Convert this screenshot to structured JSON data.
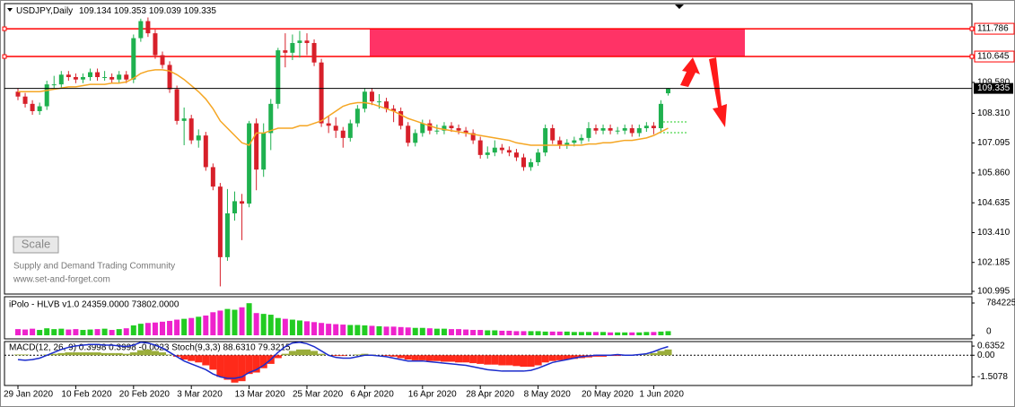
{
  "chart_data": {
    "type": "candlestick",
    "title": "USDJPY,Daily",
    "categories": [
      "29 Jan 2020",
      null,
      null,
      null,
      null,
      null,
      null,
      null,
      "10 Feb 2020",
      null,
      null,
      null,
      null,
      null,
      null,
      null,
      "20 Feb 2020",
      null,
      null,
      null,
      null,
      null,
      null,
      null,
      "3 Mar 2020",
      null,
      null,
      null,
      null,
      null,
      null,
      null,
      "13 Mar 2020",
      null,
      null,
      null,
      null,
      null,
      null,
      null,
      "25 Mar 2020",
      null,
      null,
      null,
      null,
      null,
      null,
      null,
      "6 Apr 2020",
      null,
      null,
      null,
      null,
      null,
      null,
      null,
      "16 Apr 2020",
      null,
      null,
      null,
      null,
      null,
      null,
      null,
      "28 Apr 2020",
      null,
      null,
      null,
      null,
      null,
      null,
      null,
      "8 May 2020",
      null,
      null,
      null,
      null,
      null,
      null,
      null,
      "20 May 2020",
      null,
      null,
      null,
      null,
      null,
      null,
      null,
      "1 Jun 2020",
      null,
      null
    ],
    "candles": [
      [
        109.2,
        109.35,
        108.85,
        109.0
      ],
      [
        109.0,
        109.15,
        108.55,
        108.7
      ],
      [
        108.7,
        108.85,
        108.25,
        108.4
      ],
      [
        108.4,
        108.75,
        108.25,
        108.6
      ],
      [
        108.6,
        109.65,
        108.45,
        109.5
      ],
      [
        109.5,
        109.85,
        109.35,
        109.5
      ],
      [
        109.5,
        110.05,
        109.35,
        109.9
      ],
      [
        109.9,
        110.05,
        109.65,
        109.8
      ],
      [
        109.8,
        109.95,
        109.55,
        109.7
      ],
      [
        109.7,
        109.95,
        109.55,
        109.8
      ],
      [
        109.8,
        110.15,
        109.65,
        110.0
      ],
      [
        110.0,
        110.15,
        109.65,
        109.8
      ],
      [
        109.8,
        110.05,
        109.65,
        109.8
      ],
      [
        109.8,
        109.95,
        109.55,
        109.7
      ],
      [
        109.7,
        110.05,
        109.55,
        109.9
      ],
      [
        109.9,
        110.05,
        109.55,
        109.7
      ],
      [
        109.7,
        111.55,
        109.55,
        111.4
      ],
      [
        111.4,
        112.2,
        111.25,
        112.1
      ],
      [
        112.1,
        112.25,
        111.45,
        111.6
      ],
      [
        111.6,
        111.75,
        110.55,
        110.7
      ],
      [
        110.7,
        110.85,
        110.15,
        110.3
      ],
      [
        110.3,
        110.45,
        109.15,
        109.3
      ],
      [
        109.3,
        109.45,
        107.85,
        108.0
      ],
      [
        108.0,
        108.55,
        107.0,
        108.1
      ],
      [
        108.1,
        108.25,
        107.05,
        107.2
      ],
      [
        107.2,
        107.65,
        106.9,
        107.4
      ],
      [
        107.4,
        107.55,
        105.95,
        106.1
      ],
      [
        106.1,
        106.25,
        105.15,
        105.3
      ],
      [
        105.3,
        105.45,
        101.2,
        102.4
      ],
      [
        102.4,
        105.2,
        102.25,
        104.2
      ],
      [
        104.2,
        105.1,
        103.9,
        104.7
      ],
      [
        104.7,
        105.0,
        103.1,
        104.6
      ],
      [
        104.6,
        108.0,
        104.45,
        107.9
      ],
      [
        107.9,
        108.1,
        105.15,
        106.0
      ],
      [
        106.0,
        107.9,
        105.7,
        107.5
      ],
      [
        107.5,
        108.9,
        106.8,
        108.7
      ],
      [
        108.7,
        111.0,
        108.5,
        110.9
      ],
      [
        110.9,
        111.6,
        110.2,
        110.8
      ],
      [
        110.8,
        111.55,
        110.5,
        111.2
      ],
      [
        111.2,
        111.7,
        110.6,
        111.3
      ],
      [
        111.3,
        111.6,
        110.7,
        111.2
      ],
      [
        111.2,
        111.35,
        110.25,
        110.4
      ],
      [
        110.4,
        110.55,
        107.75,
        107.9
      ],
      [
        107.9,
        108.2,
        107.5,
        107.8
      ],
      [
        107.8,
        108.15,
        107.3,
        107.6
      ],
      [
        107.6,
        107.75,
        106.9,
        107.3
      ],
      [
        107.3,
        108.05,
        107.15,
        107.9
      ],
      [
        107.9,
        108.65,
        107.75,
        108.5
      ],
      [
        108.5,
        109.35,
        108.35,
        109.2
      ],
      [
        109.2,
        109.35,
        108.65,
        108.8
      ],
      [
        108.8,
        109.1,
        108.5,
        108.8
      ],
      [
        108.8,
        108.95,
        108.35,
        108.5
      ],
      [
        108.5,
        108.65,
        107.95,
        108.4
      ],
      [
        108.4,
        108.55,
        107.65,
        107.8
      ],
      [
        107.8,
        107.95,
        106.95,
        107.1
      ],
      [
        107.1,
        107.65,
        106.95,
        107.5
      ],
      [
        107.5,
        108.05,
        107.35,
        107.9
      ],
      [
        107.9,
        108.05,
        107.45,
        107.6
      ],
      [
        107.6,
        107.85,
        107.45,
        107.6
      ],
      [
        107.6,
        107.95,
        107.45,
        107.8
      ],
      [
        107.8,
        107.95,
        107.55,
        107.7
      ],
      [
        107.7,
        107.85,
        107.45,
        107.6
      ],
      [
        107.6,
        107.75,
        107.35,
        107.5
      ],
      [
        107.5,
        107.65,
        107.05,
        107.2
      ],
      [
        107.2,
        107.35,
        106.45,
        106.6
      ],
      [
        106.6,
        106.95,
        106.45,
        106.7
      ],
      [
        106.7,
        107.2,
        106.55,
        106.9
      ],
      [
        106.9,
        107.05,
        106.65,
        106.8
      ],
      [
        106.8,
        106.95,
        106.55,
        106.7
      ],
      [
        106.7,
        106.85,
        106.35,
        106.5
      ],
      [
        106.5,
        106.65,
        105.95,
        106.1
      ],
      [
        106.1,
        106.45,
        105.95,
        106.3
      ],
      [
        106.3,
        106.85,
        106.15,
        106.7
      ],
      [
        106.7,
        107.85,
        106.55,
        107.7
      ],
      [
        107.7,
        107.85,
        107.05,
        107.2
      ],
      [
        107.2,
        107.35,
        106.85,
        107.0
      ],
      [
        107.0,
        107.25,
        106.85,
        107.1
      ],
      [
        107.1,
        107.35,
        106.95,
        107.2
      ],
      [
        107.2,
        107.45,
        107.05,
        107.3
      ],
      [
        107.3,
        107.95,
        107.15,
        107.7
      ],
      [
        107.7,
        107.85,
        107.45,
        107.6
      ],
      [
        107.6,
        107.85,
        107.45,
        107.7
      ],
      [
        107.7,
        107.85,
        107.45,
        107.6
      ],
      [
        107.6,
        107.75,
        107.45,
        107.6
      ],
      [
        107.6,
        107.85,
        107.45,
        107.7
      ],
      [
        107.7,
        107.85,
        107.35,
        107.5
      ],
      [
        107.5,
        107.85,
        107.35,
        107.7
      ],
      [
        107.7,
        107.95,
        107.55,
        107.8
      ],
      [
        107.8,
        107.95,
        107.45,
        107.7
      ],
      [
        107.7,
        108.85,
        107.55,
        108.7
      ],
      [
        109.134,
        109.353,
        109.039,
        109.335
      ]
    ],
    "up_color": "#1fb14f",
    "down_color": "#d7202a",
    "ma": {
      "color": "#f5a623",
      "values": [
        109.2,
        109.2,
        109.2,
        109.2,
        109.25,
        109.3,
        109.35,
        109.4,
        109.4,
        109.45,
        109.5,
        109.5,
        109.5,
        109.55,
        109.55,
        109.6,
        109.75,
        109.95,
        110.05,
        110.1,
        110.1,
        110.05,
        109.9,
        109.7,
        109.45,
        109.2,
        108.9,
        108.5,
        108.0,
        107.7,
        107.4,
        107.1,
        107.0,
        107.5,
        107.5,
        107.6,
        107.7,
        107.7,
        107.7,
        107.8,
        107.8,
        107.9,
        108.0,
        108.2,
        108.4,
        108.6,
        108.7,
        108.75,
        108.75,
        108.7,
        108.6,
        108.5,
        108.4,
        108.25,
        108.1,
        108.0,
        107.9,
        107.8,
        107.7,
        107.65,
        107.6,
        107.55,
        107.5,
        107.45,
        107.4,
        107.35,
        107.3,
        107.25,
        107.2,
        107.1,
        107.05,
        107.0,
        107.0,
        107.0,
        107.0,
        107.0,
        107.0,
        107.0,
        107.0,
        107.05,
        107.05,
        107.1,
        107.1,
        107.15,
        107.2,
        107.2,
        107.25,
        107.3,
        107.4,
        107.55,
        107.7
      ]
    },
    "ylim": [
      100.885,
      112.82
    ],
    "yticks": [
      {
        "value": 111.786,
        "color": "#ff0000"
      },
      {
        "value": 110.645,
        "color": "#ff0000"
      },
      {
        "value": 109.58,
        "label": "109.580"
      },
      {
        "value": 108.31,
        "label": "108.310"
      },
      107.095,
      {
        "value": 105.86,
        "label": "105.860"
      },
      104.635,
      {
        "value": 103.41,
        "label": "103.410"
      },
      102.185,
      100.995
    ],
    "zone_color": "#ff3366",
    "watermark": [
      "Supply and Demand Trading Community",
      "www.set-and-forget.com"
    ],
    "button": "Scale",
    "volume": {
      "title": "iPolo - HLVB v1.0 24359.0000 73802.0000",
      "ylim": [
        0,
        784225.05
      ],
      "yticks": [
        784225.05,
        0
      ],
      "values": [
        150000,
        140000,
        160000,
        130000,
        170000,
        150000,
        160000,
        140000,
        150000,
        130000,
        140000,
        150000,
        160000,
        130000,
        150000,
        170000,
        240000,
        280000,
        300000,
        310000,
        330000,
        350000,
        380000,
        400000,
        420000,
        450000,
        480000,
        560000,
        600000,
        640000,
        620000,
        680000,
        780000,
        540000,
        520000,
        500000,
        420000,
        400000,
        380000,
        360000,
        340000,
        320000,
        300000,
        280000,
        270000,
        260000,
        250000,
        250000,
        240000,
        230000,
        220000,
        210000,
        210000,
        200000,
        190000,
        180000,
        180000,
        170000,
        160000,
        160000,
        150000,
        150000,
        140000,
        130000,
        130000,
        120000,
        120000,
        110000,
        110000,
        100000,
        100000,
        100000,
        100000,
        90000,
        90000,
        90000,
        90000,
        80000,
        80000,
        80000,
        80000,
        80000,
        70000,
        70000,
        70000,
        70000,
        70000,
        80000,
        80000,
        90000,
        100000
      ],
      "up_color": "#22cc22",
      "down_color": "#ee22cc"
    },
    "macd": {
      "title": "MACD(12, 26, 9) 0.3998 0.3998 -0.0023  Stoch(9,3,3) 88.6310 79.3215",
      "ylim": [
        -2.1,
        0.95
      ],
      "yticks": [
        0.6352,
        {
          "value": 0,
          "label": "0.00"
        },
        -1.5078
      ],
      "positive_color": "#9aad3a",
      "negative_color": "#ff2a1a",
      "line_color": "#1a2bcc",
      "histogram": [
        0.05,
        0.05,
        0.0,
        0.0,
        0.05,
        0.1,
        0.15,
        0.2,
        0.2,
        0.2,
        0.2,
        0.2,
        0.15,
        0.15,
        0.15,
        0.1,
        0.2,
        0.35,
        0.4,
        0.3,
        0.2,
        0.05,
        -0.1,
        -0.3,
        -0.4,
        -0.5,
        -0.7,
        -1.0,
        -1.5,
        -1.7,
        -1.9,
        -1.8,
        -1.3,
        -1.2,
        -0.9,
        -0.6,
        -0.2,
        0.1,
        0.3,
        0.4,
        0.4,
        0.3,
        0.1,
        0.0,
        -0.05,
        -0.05,
        0.0,
        0.05,
        0.1,
        0.05,
        0.0,
        -0.05,
        -0.1,
        -0.2,
        -0.3,
        -0.35,
        -0.35,
        -0.4,
        -0.4,
        -0.45,
        -0.45,
        -0.5,
        -0.5,
        -0.55,
        -0.6,
        -0.65,
        -0.65,
        -0.7,
        -0.7,
        -0.75,
        -0.8,
        -0.8,
        -0.7,
        -0.5,
        -0.4,
        -0.35,
        -0.3,
        -0.25,
        -0.2,
        -0.15,
        -0.1,
        -0.1,
        -0.05,
        -0.05,
        0.0,
        0.0,
        0.0,
        0.05,
        0.15,
        0.3,
        0.3998
      ],
      "line": [
        -0.3,
        -0.35,
        -0.3,
        -0.2,
        0.0,
        0.2,
        0.4,
        0.55,
        0.65,
        0.7,
        0.75,
        0.75,
        0.7,
        0.7,
        0.65,
        0.6,
        0.7,
        0.9,
        0.85,
        0.7,
        0.5,
        0.2,
        -0.1,
        -0.4,
        -0.6,
        -0.8,
        -1.0,
        -1.3,
        -1.5,
        -1.6,
        -1.6,
        -1.5,
        -1.2,
        -1.0,
        -0.7,
        -0.3,
        0.2,
        0.6,
        0.85,
        0.9,
        0.8,
        0.6,
        0.3,
        0.0,
        -0.15,
        -0.2,
        -0.2,
        -0.1,
        0.0,
        0.0,
        -0.05,
        -0.1,
        -0.2,
        -0.3,
        -0.4,
        -0.4,
        -0.4,
        -0.45,
        -0.5,
        -0.55,
        -0.6,
        -0.65,
        -0.7,
        -0.8,
        -0.9,
        -1.0,
        -1.05,
        -1.1,
        -1.1,
        -1.1,
        -1.1,
        -1.05,
        -0.9,
        -0.7,
        -0.5,
        -0.4,
        -0.3,
        -0.2,
        -0.1,
        -0.05,
        0.0,
        0.0,
        0.0,
        0.05,
        0.0,
        0.0,
        0.05,
        0.1,
        0.25,
        0.45,
        0.6
      ]
    }
  }
}
